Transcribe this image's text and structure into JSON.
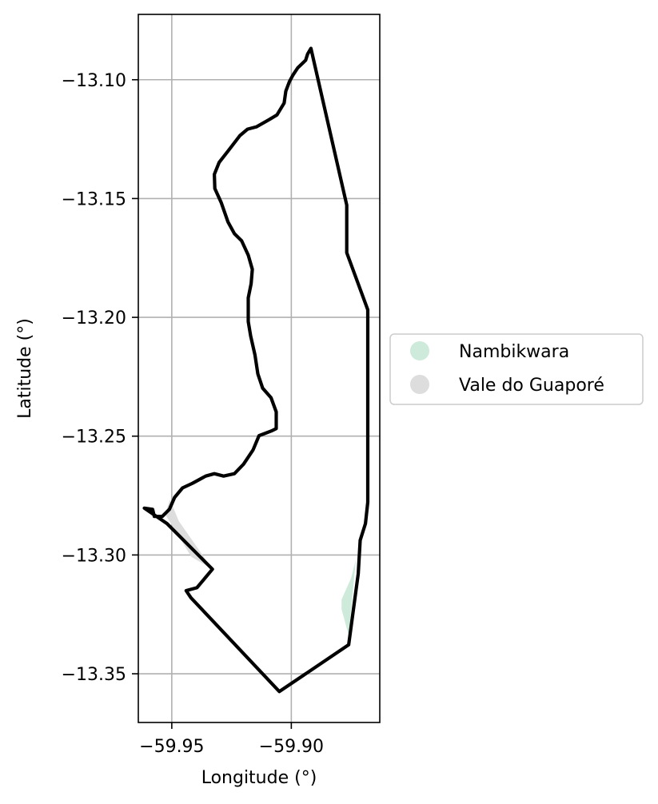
{
  "chart_data": {
    "type": "map",
    "xlabel": "Longitude (°)",
    "ylabel": "Latitude (°)",
    "xlim": [
      -59.964,
      -59.863
    ],
    "ylim": [
      -13.3705,
      -13.0725
    ],
    "grid": true,
    "x_ticks": [
      {
        "value": -59.95,
        "label": "−59.95"
      },
      {
        "value": -59.9,
        "label": "−59.90"
      }
    ],
    "y_ticks": [
      {
        "value": -13.1,
        "label": "−13.10"
      },
      {
        "value": -13.15,
        "label": "−13.15"
      },
      {
        "value": -13.2,
        "label": "−13.20"
      },
      {
        "value": -13.25,
        "label": "−13.25"
      },
      {
        "value": -13.3,
        "label": "−13.30"
      },
      {
        "value": -13.35,
        "label": "−13.35"
      }
    ],
    "legend": {
      "placement": "center-right",
      "entries": [
        {
          "name": "Nambikwara",
          "color": "#cdeadb"
        },
        {
          "name": "Vale do Guaporé",
          "color": "#dddddd"
        }
      ]
    },
    "boundary": {
      "color": "#000000",
      "coords": [
        [
          -59.8918,
          -13.0868
        ],
        [
          -59.8932,
          -13.0892
        ],
        [
          -59.894,
          -13.0918
        ],
        [
          -59.8973,
          -13.095
        ],
        [
          -59.8993,
          -13.098
        ],
        [
          -59.9008,
          -13.1008
        ],
        [
          -59.9023,
          -13.1048
        ],
        [
          -59.903,
          -13.1098
        ],
        [
          -59.906,
          -13.1148
        ],
        [
          -59.9093,
          -13.1168
        ],
        [
          -59.9145,
          -13.1198
        ],
        [
          -59.9183,
          -13.1208
        ],
        [
          -59.9215,
          -13.1235
        ],
        [
          -59.9263,
          -13.1298
        ],
        [
          -59.9302,
          -13.1348
        ],
        [
          -59.9322,
          -13.1398
        ],
        [
          -59.932,
          -13.1458
        ],
        [
          -59.9293,
          -13.1518
        ],
        [
          -59.9265,
          -13.1598
        ],
        [
          -59.9238,
          -13.1648
        ],
        [
          -59.9208,
          -13.1678
        ],
        [
          -59.918,
          -13.1738
        ],
        [
          -59.9163,
          -13.1798
        ],
        [
          -59.9168,
          -13.1858
        ],
        [
          -59.918,
          -13.1918
        ],
        [
          -59.918,
          -13.2018
        ],
        [
          -59.917,
          -13.2078
        ],
        [
          -59.9152,
          -13.2158
        ],
        [
          -59.914,
          -13.2238
        ],
        [
          -59.912,
          -13.2298
        ],
        [
          -59.9085,
          -13.2338
        ],
        [
          -59.9063,
          -13.2398
        ],
        [
          -59.9063,
          -13.2468
        ],
        [
          -59.9083,
          -13.2478
        ],
        [
          -59.9135,
          -13.2498
        ],
        [
          -59.916,
          -13.2558
        ],
        [
          -59.92,
          -13.2618
        ],
        [
          -59.9238,
          -13.2658
        ],
        [
          -59.9283,
          -13.2668
        ],
        [
          -59.9322,
          -13.2658
        ],
        [
          -59.9358,
          -13.2668
        ],
        [
          -59.9413,
          -13.2698
        ],
        [
          -59.9455,
          -13.2718
        ],
        [
          -59.9488,
          -13.2758
        ],
        [
          -59.951,
          -13.2808
        ],
        [
          -59.954,
          -13.2838
        ],
        [
          -59.9573,
          -13.2838
        ],
        [
          -59.958,
          -13.2808
        ],
        [
          -59.9615,
          -13.2803
        ],
        [
          -59.952,
          -13.2868
        ],
        [
          -59.933,
          -13.306
        ],
        [
          -59.9395,
          -13.3138
        ],
        [
          -59.944,
          -13.315
        ],
        [
          -59.942,
          -13.318
        ],
        [
          -59.905,
          -13.3575
        ],
        [
          -59.876,
          -13.3378
        ],
        [
          -59.872,
          -13.3078
        ],
        [
          -59.8712,
          -13.2938
        ],
        [
          -59.869,
          -13.2868
        ],
        [
          -59.868,
          -13.2778
        ],
        [
          -59.868,
          -13.1968
        ],
        [
          -59.8768,
          -13.1728
        ],
        [
          -59.8768,
          -13.1528
        ],
        [
          -59.8918,
          -13.0868
        ]
      ]
    },
    "filled_regions": [
      {
        "name": "Nambikwara",
        "color": "#cdeadb",
        "coords": [
          [
            -59.873,
            -13.302
          ],
          [
            -59.876,
            -13.3338
          ],
          [
            -59.879,
            -13.3228
          ],
          [
            -59.879,
            -13.3188
          ],
          [
            -59.875,
            -13.3098
          ],
          [
            -59.873,
            -13.302
          ]
        ]
      },
      {
        "name": "Vale do Guaporé",
        "color": "#dddddd",
        "coords": [
          [
            -59.9528,
            -13.2828
          ],
          [
            -59.9508,
            -13.2768
          ],
          [
            -59.947,
            -13.2858
          ],
          [
            -59.933,
            -13.306
          ],
          [
            -59.9418,
            -13.3008
          ],
          [
            -59.9528,
            -13.2828
          ]
        ]
      }
    ]
  }
}
